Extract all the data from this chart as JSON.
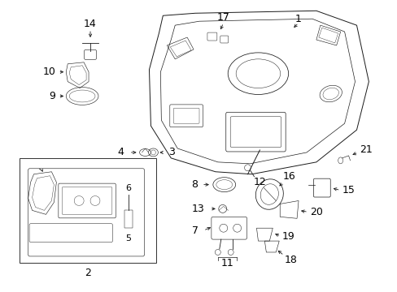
{
  "bg_color": "#ffffff",
  "line_color": "#1a1a1a",
  "text_color": "#000000",
  "fig_width": 4.89,
  "fig_height": 3.6,
  "dpi": 100
}
